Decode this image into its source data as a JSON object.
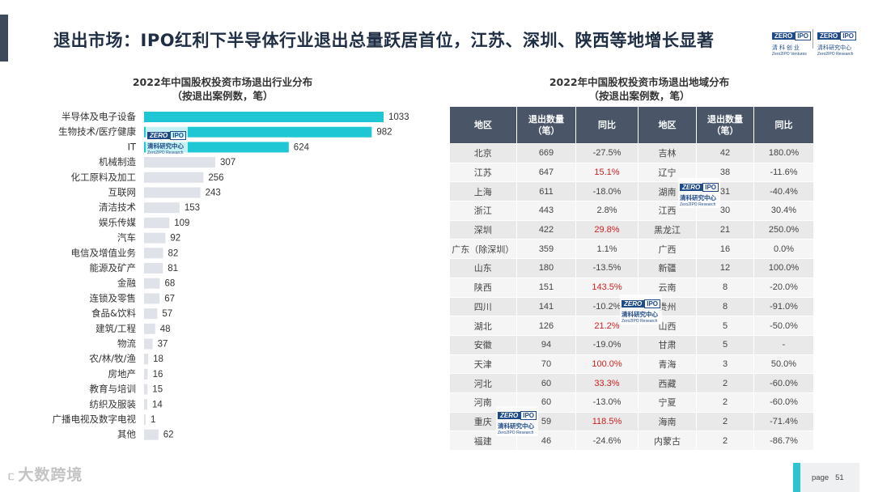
{
  "header": {
    "title": "退出市场：IPO红利下半导体行业退出总量跃居首位，江苏、深圳、陕西等地增长显著",
    "logo1": {
      "zero": "ZERO",
      "ipo": "IPO",
      "cn": "清 科 创 业",
      "en": "Zero2IPO Ventures"
    },
    "logo2": {
      "zero": "ZERO",
      "ipo": "IPO",
      "cn": "清科研究中心",
      "en": "Zero2IPO Research"
    }
  },
  "left_chart": {
    "title_line1": "2022年中国股权投资市场退出行业分布",
    "title_line2": "（按退出案例数，笔）"
  },
  "chart_data": {
    "type": "bar",
    "orientation": "horizontal",
    "title": "2022年中国股权投资市场退出行业分布（按退出案例数，笔）",
    "categories": [
      "半导体及电子设备",
      "生物技术/医疗健康",
      "IT",
      "机械制造",
      "化工原料及加工",
      "互联网",
      "清洁技术",
      "娱乐传媒",
      "汽车",
      "电信及增值业务",
      "能源及矿产",
      "金融",
      "连锁及零售",
      "食品&饮料",
      "建筑/工程",
      "物流",
      "农/林/牧/渔",
      "房地产",
      "教育与培训",
      "纺织及服装",
      "广播电视及数字电视",
      "其他"
    ],
    "values": [
      1033,
      982,
      624,
      307,
      256,
      243,
      153,
      109,
      92,
      82,
      81,
      68,
      67,
      57,
      48,
      37,
      18,
      16,
      15,
      14,
      1,
      62
    ],
    "highlight_count": 3,
    "colors": {
      "highlight": "#1fc6d3",
      "normal": "#dfe2e8"
    }
  },
  "right_table": {
    "title_line1": "2022年中国股权投资市场退出地域分布",
    "title_line2": "（按退出案例数，笔）",
    "headers": [
      "地区",
      "退出数量\n（笔）",
      "同比",
      "地区",
      "退出数量\n（笔）",
      "同比"
    ],
    "rows": [
      [
        "北京",
        "669",
        "-27.5%",
        "吉林",
        "42",
        "180.0%"
      ],
      [
        "江苏",
        "647",
        "15.1%",
        "辽宁",
        "38",
        "-11.6%"
      ],
      [
        "上海",
        "611",
        "-18.0%",
        "湖南",
        "31",
        "-40.4%"
      ],
      [
        "浙江",
        "443",
        "2.8%",
        "江西",
        "30",
        "30.4%"
      ],
      [
        "深圳",
        "422",
        "29.8%",
        "黑龙江",
        "21",
        "250.0%"
      ],
      [
        "广东（除深圳）",
        "359",
        "1.1%",
        "广西",
        "16",
        "0.0%"
      ],
      [
        "山东",
        "180",
        "-13.5%",
        "新疆",
        "12",
        "100.0%"
      ],
      [
        "陕西",
        "151",
        "143.5%",
        "云南",
        "8",
        "-20.0%"
      ],
      [
        "四川",
        "141",
        "-10.2%",
        "贵州",
        "8",
        "-91.0%"
      ],
      [
        "湖北",
        "126",
        "21.2%",
        "山西",
        "5",
        "-50.0%"
      ],
      [
        "安徽",
        "94",
        "-19.0%",
        "甘肃",
        "5",
        "-"
      ],
      [
        "天津",
        "70",
        "100.0%",
        "青海",
        "3",
        "50.0%"
      ],
      [
        "河北",
        "60",
        "33.3%",
        "西藏",
        "2",
        "-60.0%"
      ],
      [
        "河南",
        "60",
        "-13.0%",
        "宁夏",
        "2",
        "-60.0%"
      ],
      [
        "重庆",
        "59",
        "118.5%",
        "海南",
        "2",
        "-71.4%"
      ],
      [
        "福建",
        "46",
        "-24.6%",
        "内蒙古",
        "2",
        "-86.7%"
      ]
    ],
    "red_cells": [
      "1-2",
      "4-2",
      "7-2",
      "9-2",
      "11-2",
      "12-2",
      "14-2"
    ]
  },
  "watermark": {
    "zero": "ZERO",
    "ipo": "IPO",
    "cn": "清科研究中心",
    "en": "Zero2IPO Research"
  },
  "footer": {
    "brand": "大数跨境",
    "page_label": "page",
    "page_number": "51"
  }
}
